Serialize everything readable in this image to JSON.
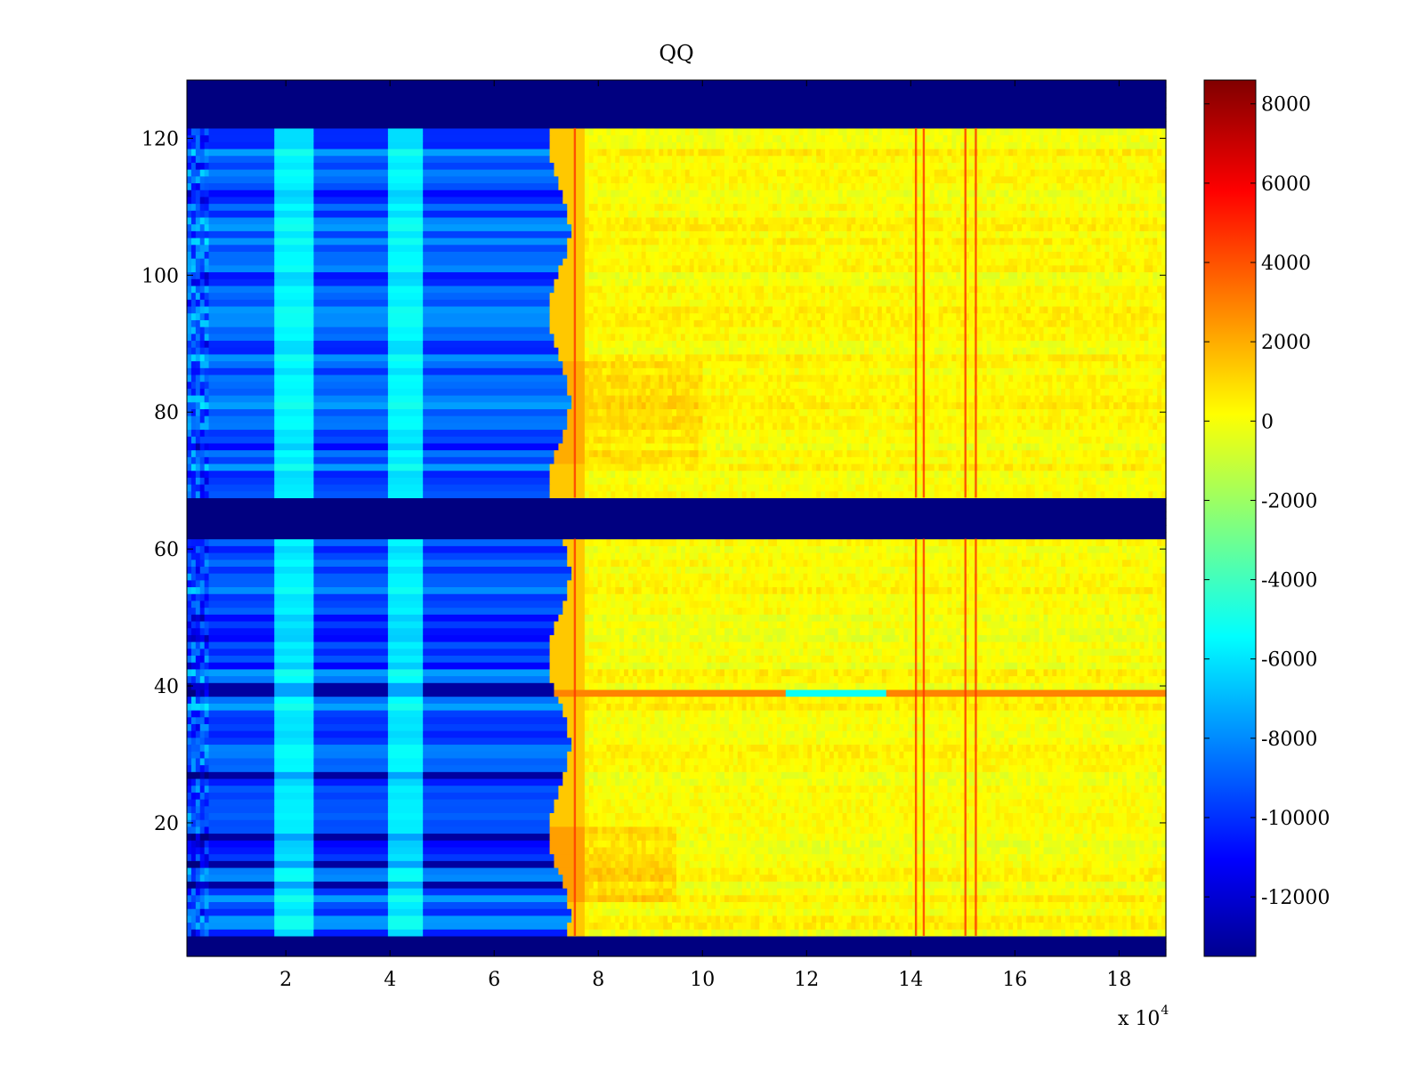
{
  "chart_data": {
    "type": "heatmap",
    "title": "QQ",
    "xlabel": "",
    "ylabel": "",
    "x_multiplier_label": "x 10",
    "x_multiplier_exponent": "4",
    "xlim": [
      0.1,
      18.9
    ],
    "ylim": [
      0.5,
      128.5
    ],
    "x_ticks": [
      2,
      4,
      6,
      8,
      10,
      12,
      14,
      16,
      18
    ],
    "y_ticks": [
      20,
      40,
      60,
      80,
      100,
      120
    ],
    "colorbar": {
      "colormap": "jet",
      "range": [
        -13500,
        8600
      ],
      "ticks": [
        8000,
        6000,
        4000,
        2000,
        0,
        -2000,
        -4000,
        -6000,
        -8000,
        -10000,
        -12000
      ]
    },
    "empty_row_bands": [
      [
        0.5,
        3.5
      ],
      [
        61.5,
        67.5
      ],
      [
        121.5,
        128.5
      ]
    ],
    "regions": [
      {
        "x_range": [
          0.1,
          7.3
        ],
        "value_approx": -8000,
        "description_value": "blue block"
      },
      {
        "x_range": [
          1.8,
          2.5
        ],
        "value_approx": -4500
      },
      {
        "x_range": [
          4.0,
          4.6
        ],
        "value_approx": -4500
      },
      {
        "x_range": [
          7.6,
          18.9
        ],
        "value_approx": 500
      }
    ],
    "bright_stripes_x": [
      7.55,
      14.1,
      14.25,
      15.05,
      15.25
    ],
    "bright_row_y": 39,
    "dark_rows_y": [
      18,
      27,
      39,
      11,
      14
    ]
  }
}
